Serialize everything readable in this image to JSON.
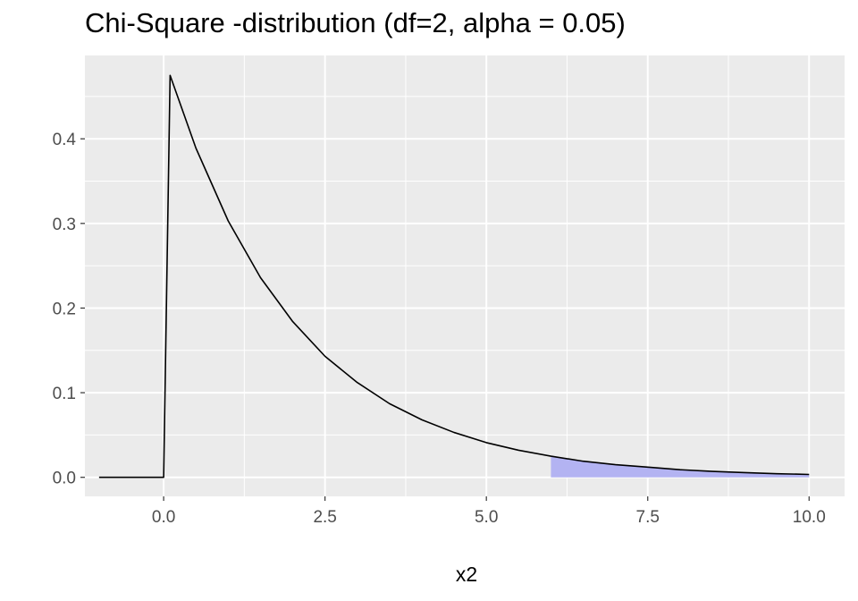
{
  "chart_data": {
    "type": "area",
    "title": "Chi-Square -distribution (df=2, alpha = 0.05)",
    "xlabel": "x2",
    "ylabel": "",
    "xlim": [
      -1.22,
      10.55
    ],
    "ylim": [
      -0.0225,
      0.4985
    ],
    "x_ticks": [
      0.0,
      2.5,
      5.0,
      7.5,
      10.0
    ],
    "x_tick_labels": [
      "0.0",
      "2.5",
      "5.0",
      "7.5",
      "10.0"
    ],
    "y_ticks": [
      0.0,
      0.1,
      0.2,
      0.3,
      0.4
    ],
    "y_tick_labels": [
      "0.0",
      "0.1",
      "0.2",
      "0.3",
      "0.4"
    ],
    "grid": true,
    "series": [
      {
        "line_points": [
          [
            -1.0,
            0.0
          ],
          [
            0.0,
            0.0
          ],
          [
            0.1,
            0.475
          ],
          [
            0.5,
            0.389
          ],
          [
            1.0,
            0.303
          ],
          [
            1.5,
            0.236
          ],
          [
            2.0,
            0.184
          ],
          [
            2.5,
            0.143
          ],
          [
            3.0,
            0.112
          ],
          [
            3.5,
            0.087
          ],
          [
            4.0,
            0.068
          ],
          [
            4.5,
            0.053
          ],
          [
            5.0,
            0.041
          ],
          [
            5.5,
            0.032
          ],
          [
            6.0,
            0.025
          ],
          [
            6.5,
            0.019
          ],
          [
            7.0,
            0.015
          ],
          [
            7.5,
            0.012
          ],
          [
            8.0,
            0.009
          ],
          [
            8.5,
            0.007
          ],
          [
            9.0,
            0.0056
          ],
          [
            9.5,
            0.0043
          ],
          [
            10.0,
            0.0034
          ]
        ]
      }
    ],
    "shaded_region": {
      "from": 6.0,
      "to": 10.0,
      "fill": "#b3b3f2"
    },
    "colors": {
      "panel": "#ebebeb",
      "grid": "#ffffff",
      "line": "#000000"
    }
  }
}
